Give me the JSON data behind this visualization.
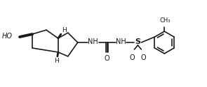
{
  "bg_color": "#ffffff",
  "line_color": "#1a1a1a",
  "line_width": 1.2,
  "font_size": 7.0,
  "figsize": [
    2.95,
    1.25
  ],
  "dpi": 100,
  "xlim": [
    0,
    295
  ],
  "ylim": [
    0,
    125
  ]
}
